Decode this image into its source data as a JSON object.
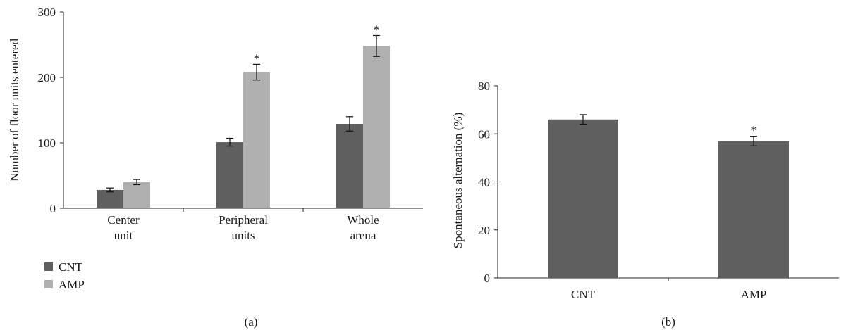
{
  "chart_data": [
    {
      "id": "a",
      "type": "bar",
      "panel_label": "(a)",
      "ylabel": "Number of floor units entered",
      "xlabel": "",
      "ylim": [
        0,
        300
      ],
      "yticks": [
        0,
        100,
        200,
        300
      ],
      "categories": [
        [
          "Center",
          "unit"
        ],
        [
          "Peripheral",
          "units"
        ],
        [
          "Whole",
          "arena"
        ]
      ],
      "series": [
        {
          "name": "CNT",
          "color": "#5f5f5f",
          "values": [
            28,
            101,
            129
          ],
          "errors": [
            3,
            6,
            11
          ],
          "significant": [
            false,
            false,
            false
          ]
        },
        {
          "name": "AMP",
          "color": "#b0b0b0",
          "values": [
            40,
            208,
            248
          ],
          "errors": [
            4,
            12,
            16
          ],
          "significant": [
            false,
            true,
            true
          ]
        }
      ],
      "significance_marker": "*",
      "legend": {
        "placement": "bottom-left"
      },
      "grid": false
    },
    {
      "id": "b",
      "type": "bar",
      "panel_label": "(b)",
      "ylabel": "Spontaneous alternation (%)",
      "xlabel": "",
      "ylim": [
        0,
        80
      ],
      "yticks": [
        0,
        20,
        40,
        60,
        80
      ],
      "categories": [
        "CNT",
        "AMP"
      ],
      "series": [
        {
          "color": "#5f5f5f",
          "values": [
            66,
            57
          ],
          "errors": [
            2,
            2
          ],
          "significant": [
            false,
            true
          ]
        }
      ],
      "significance_marker": "*",
      "grid": false
    }
  ]
}
